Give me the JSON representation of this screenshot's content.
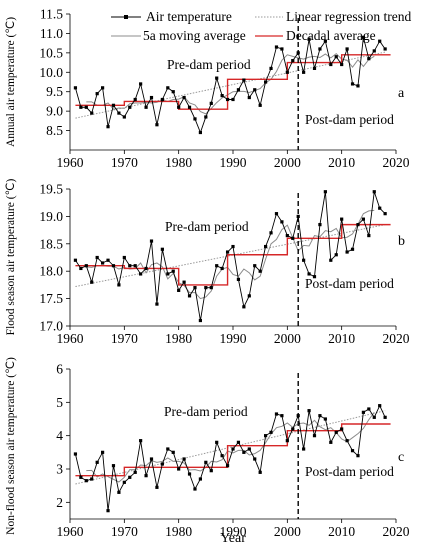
{
  "figure": {
    "xlabel": "Year"
  },
  "legend": {
    "air": "Air temperature",
    "lin": "Linear regression trend",
    "ma": "5a moving average",
    "dec": "Decadal average"
  },
  "colors": {
    "air": "#000000",
    "lin": "#999999",
    "ma": "#8c8c8c",
    "dec": "#d62728",
    "dam": "#000000"
  },
  "chart_data": [
    {
      "type": "line",
      "ylabel": "Annual air temperature (℃)",
      "panel_label": "a",
      "pre_label": "Pre-dam period",
      "post_label": "Post-dam period",
      "xlim": [
        1960,
        2020
      ],
      "ylim": [
        8.0,
        11.5
      ],
      "x_ticks": [
        1960,
        1970,
        1980,
        1990,
        2000,
        2010,
        2020
      ],
      "y_ticks": [
        8.5,
        9.0,
        9.5,
        10.0,
        10.5,
        11.0,
        11.5
      ],
      "tick_decimals": 1,
      "dam_year": 2002,
      "legend": "top",
      "x": [
        1961,
        1962,
        1963,
        1964,
        1965,
        1966,
        1967,
        1968,
        1969,
        1970,
        1971,
        1972,
        1973,
        1974,
        1975,
        1976,
        1977,
        1978,
        1979,
        1980,
        1981,
        1982,
        1983,
        1984,
        1985,
        1986,
        1987,
        1988,
        1989,
        1990,
        1991,
        1992,
        1993,
        1994,
        1995,
        1996,
        1997,
        1998,
        1999,
        2000,
        2001,
        2002,
        2003,
        2004,
        2005,
        2006,
        2007,
        2008,
        2009,
        2010,
        2011,
        2012,
        2013,
        2014,
        2015,
        2016,
        2017,
        2018
      ],
      "series": [
        {
          "name": "Air temperature",
          "values": [
            9.6,
            9.1,
            9.1,
            8.95,
            9.45,
            9.6,
            8.6,
            9.15,
            8.95,
            8.85,
            9.1,
            9.3,
            9.7,
            9.1,
            9.35,
            8.65,
            9.3,
            9.6,
            9.5,
            9.1,
            9.35,
            9.1,
            8.8,
            8.45,
            8.85,
            9.2,
            9.85,
            9.4,
            9.3,
            9.3,
            9.55,
            9.8,
            9.35,
            9.55,
            9.15,
            9.75,
            10.1,
            10.65,
            10.6,
            10.0,
            10.3,
            10.5,
            10.0,
            10.85,
            10.1,
            10.6,
            10.8,
            10.2,
            10.4,
            10.2,
            10.6,
            9.7,
            9.65,
            10.9,
            10.35,
            10.55,
            10.8,
            10.6
          ]
        },
        {
          "name": "5a moving average",
          "values": [
            null,
            null,
            9.24,
            9.24,
            9.15,
            9.15,
            9.21,
            9.05,
            9.08,
            9.07,
            9.19,
            9.21,
            9.21,
            9.23,
            9.21,
            9.23,
            9.29,
            9.25,
            9.3,
            9.31,
            9.37,
            9.21,
            9.16,
            8.99,
            8.93,
            9.07,
            9.22,
            9.34,
            9.42,
            9.5,
            9.51,
            9.51,
            9.48,
            9.53,
            9.58,
            9.73,
            9.82,
            10.02,
            10.31,
            10.45,
            10.41,
            10.37,
            10.34,
            10.39,
            10.41,
            10.38,
            10.47,
            10.37,
            10.48,
            10.34,
            10.31,
            10.13,
            10.32,
            10.15,
            10.33,
            10.41,
            null,
            null
          ]
        },
        {
          "name": "Decadal average",
          "steps": [
            [
              1961,
              1970,
              9.15
            ],
            [
              1970,
              1980,
              9.25
            ],
            [
              1980,
              1989,
              9.05
            ],
            [
              1989,
              2000,
              9.82
            ],
            [
              2000,
              2010,
              10.25
            ],
            [
              2010,
              2019,
              10.45
            ]
          ]
        },
        {
          "name": "Linear regression trend",
          "start": [
            1961,
            8.82
          ],
          "end": [
            2018,
            10.52
          ]
        }
      ]
    },
    {
      "type": "line",
      "ylabel": "Flood season air temperature (℃)",
      "panel_label": "b",
      "pre_label": "Pre-dam period",
      "post_label": "Post-dam period",
      "xlim": [
        1960,
        2020
      ],
      "ylim": [
        17.0,
        19.5
      ],
      "x_ticks": [
        1960,
        1970,
        1980,
        1990,
        2000,
        2010,
        2020
      ],
      "y_ticks": [
        17.0,
        17.5,
        18.0,
        18.5,
        19.0,
        19.5
      ],
      "tick_decimals": 1,
      "dam_year": 2002,
      "x": [
        1961,
        1962,
        1963,
        1964,
        1965,
        1966,
        1967,
        1968,
        1969,
        1970,
        1971,
        1972,
        1973,
        1974,
        1975,
        1976,
        1977,
        1978,
        1979,
        1980,
        1981,
        1982,
        1983,
        1984,
        1985,
        1986,
        1987,
        1988,
        1989,
        1990,
        1991,
        1992,
        1993,
        1994,
        1995,
        1996,
        1997,
        1998,
        1999,
        2000,
        2001,
        2002,
        2003,
        2004,
        2005,
        2006,
        2007,
        2008,
        2009,
        2010,
        2011,
        2012,
        2013,
        2014,
        2015,
        2016,
        2017,
        2018
      ],
      "series": [
        {
          "name": "Air temperature",
          "values": [
            18.2,
            18.05,
            18.1,
            17.8,
            18.25,
            18.15,
            18.2,
            18.1,
            17.75,
            18.25,
            18.1,
            18.1,
            17.95,
            18.05,
            18.55,
            17.4,
            18.4,
            17.95,
            18.0,
            17.65,
            17.8,
            17.55,
            17.7,
            17.1,
            17.7,
            17.7,
            18.1,
            18.05,
            18.35,
            18.45,
            17.85,
            17.35,
            17.55,
            18.1,
            18.0,
            18.45,
            18.7,
            19.05,
            18.9,
            18.65,
            18.6,
            19.0,
            18.2,
            17.95,
            17.9,
            18.85,
            19.45,
            18.2,
            18.3,
            18.95,
            18.35,
            18.4,
            18.85,
            18.95,
            18.65,
            19.45,
            19.15,
            19.05
          ]
        },
        {
          "name": "5a moving average",
          "values": [
            null,
            null,
            18.08,
            18.07,
            18.1,
            18.1,
            18.09,
            18.09,
            18.04,
            18.07,
            18.04,
            18.05,
            18.15,
            17.97,
            18.12,
            18.15,
            18.08,
            17.86,
            17.96,
            17.79,
            17.74,
            17.61,
            17.61,
            17.5,
            17.53,
            17.64,
            17.91,
            18.04,
            18.07,
            17.94,
            17.91,
            18.04,
            17.97,
            17.84,
            17.91,
            18.22,
            18.5,
            18.58,
            18.76,
            18.84,
            18.61,
            18.37,
            18.47,
            18.46,
            18.65,
            18.63,
            18.74,
            18.72,
            18.78,
            18.61,
            18.62,
            18.68,
            18.86,
            19.05,
            19.1,
            19.11,
            null,
            null
          ]
        },
        {
          "name": "Decadal average",
          "steps": [
            [
              1961,
              1970,
              18.1
            ],
            [
              1970,
              1980,
              18.05
            ],
            [
              1980,
              1989,
              17.75
            ],
            [
              1989,
              2000,
              18.3
            ],
            [
              2000,
              2010,
              18.6
            ],
            [
              2010,
              2019,
              18.85
            ]
          ]
        },
        {
          "name": "Linear regression trend",
          "start": [
            1961,
            17.72
          ],
          "end": [
            2018,
            18.85
          ]
        }
      ]
    },
    {
      "type": "line",
      "ylabel": "Non-flood season air temperature (℃)",
      "panel_label": "c",
      "pre_label": "Pre-dam period",
      "post_label": "Post-dam period",
      "xlim": [
        1960,
        2020
      ],
      "ylim": [
        1.5,
        6.0
      ],
      "x_ticks": [
        1960,
        1970,
        1980,
        1990,
        2000,
        2010,
        2020
      ],
      "y_ticks": [
        2,
        3,
        4,
        5,
        6
      ],
      "tick_decimals": 0,
      "dam_year": 2002,
      "x": [
        1961,
        1962,
        1963,
        1964,
        1965,
        1966,
        1967,
        1968,
        1969,
        1970,
        1971,
        1972,
        1973,
        1974,
        1975,
        1976,
        1977,
        1978,
        1979,
        1980,
        1981,
        1982,
        1983,
        1984,
        1985,
        1986,
        1987,
        1988,
        1989,
        1990,
        1991,
        1992,
        1993,
        1994,
        1995,
        1996,
        1997,
        1998,
        1999,
        2000,
        2001,
        2002,
        2003,
        2004,
        2005,
        2006,
        2007,
        2008,
        2009,
        2010,
        2011,
        2012,
        2013,
        2014,
        2015,
        2016,
        2017,
        2018
      ],
      "series": [
        {
          "name": "Air temperature",
          "values": [
            3.45,
            2.75,
            2.65,
            2.7,
            3.2,
            3.5,
            1.75,
            3.1,
            2.3,
            2.6,
            2.75,
            2.9,
            3.85,
            2.8,
            3.3,
            2.45,
            3.15,
            3.6,
            3.5,
            3.0,
            3.3,
            2.85,
            2.4,
            2.7,
            3.2,
            2.95,
            3.8,
            3.4,
            3.1,
            3.6,
            3.8,
            3.5,
            3.6,
            3.3,
            2.9,
            4.0,
            4.1,
            4.65,
            4.6,
            3.85,
            4.2,
            4.6,
            3.6,
            4.75,
            4.0,
            4.6,
            4.5,
            3.8,
            4.1,
            4.2,
            3.85,
            3.55,
            3.4,
            4.7,
            4.8,
            4.55,
            4.9,
            4.55
          ]
        },
        {
          "name": "5a moving average",
          "values": [
            null,
            null,
            2.95,
            2.96,
            2.76,
            2.85,
            2.77,
            2.69,
            2.61,
            2.75,
            2.98,
            2.98,
            3.12,
            3.1,
            3.25,
            3.2,
            3.23,
            3.33,
            3.23,
            3.23,
            3.18,
            2.97,
            2.98,
            2.94,
            3.05,
            3.23,
            3.21,
            3.28,
            3.54,
            3.48,
            3.56,
            3.56,
            3.42,
            3.46,
            3.56,
            3.79,
            4.05,
            4.24,
            4.28,
            4.38,
            4.25,
            4.36,
            4.38,
            4.31,
            4.46,
            4.27,
            4.18,
            4.24,
            4.09,
            3.9,
            3.82,
            3.94,
            4.06,
            4.22,
            4.48,
            4.7,
            null,
            null
          ]
        },
        {
          "name": "Decadal average",
          "steps": [
            [
              1961,
              1970,
              2.8
            ],
            [
              1970,
              1980,
              3.05
            ],
            [
              1980,
              1989,
              3.05
            ],
            [
              1989,
              2000,
              3.7
            ],
            [
              2000,
              2010,
              4.15
            ],
            [
              2010,
              2019,
              4.35
            ]
          ]
        },
        {
          "name": "Linear regression trend",
          "start": [
            1961,
            2.55
          ],
          "end": [
            2018,
            4.75
          ]
        }
      ]
    }
  ]
}
